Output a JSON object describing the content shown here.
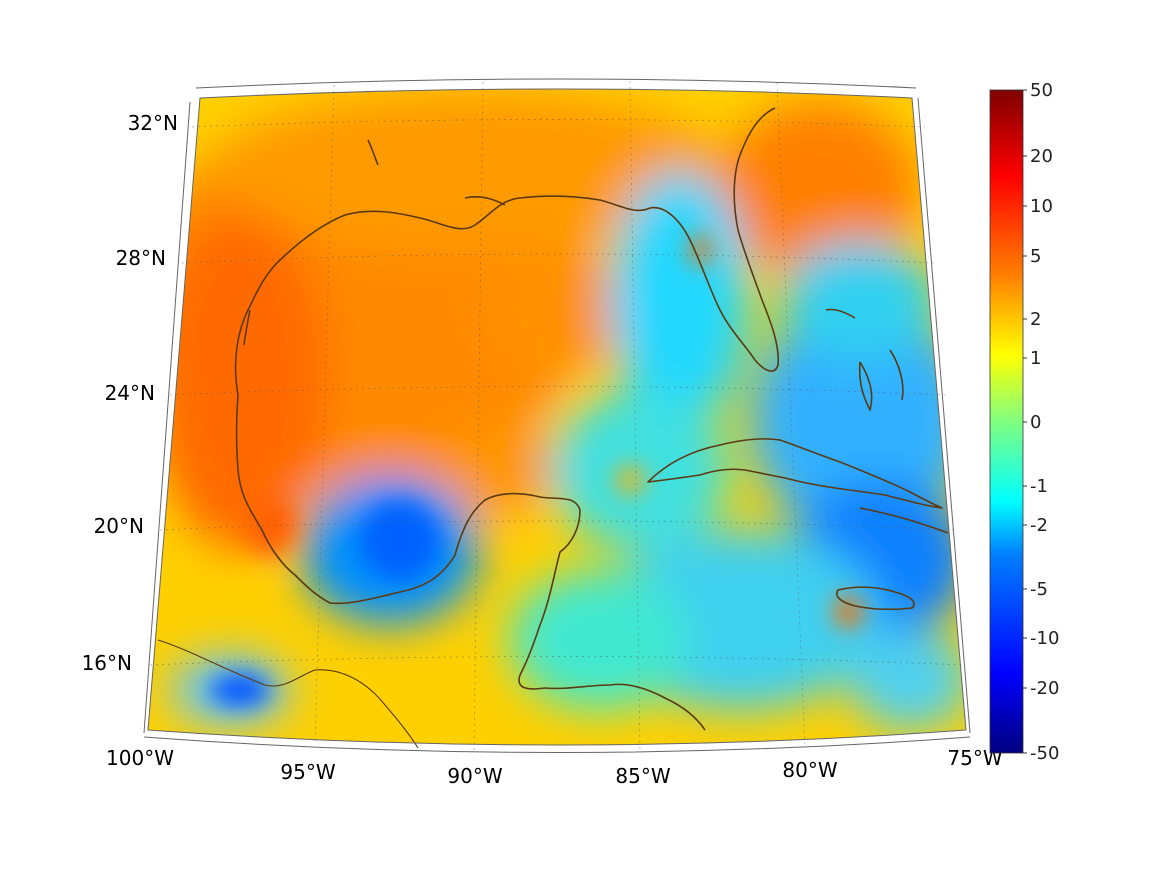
{
  "map": {
    "lat_labels": [
      "32°N",
      "28°N",
      "24°N",
      "20°N",
      "16°N"
    ],
    "lon_labels": [
      "100°W",
      "95°W",
      "90°W",
      "85°W",
      "80°W",
      "75°W"
    ]
  },
  "colorbar": {
    "tick_labels": [
      "50",
      "20",
      "10",
      "5",
      "2",
      "1",
      "0",
      "-1",
      "-2",
      "-5",
      "-10",
      "-20",
      "-50"
    ],
    "colors": [
      "#7f0000",
      "#ff0000",
      "#ff8000",
      "#ffff00",
      "#80ff80",
      "#00ffff",
      "#0080ff",
      "#0000ff",
      "#00007f"
    ]
  }
}
